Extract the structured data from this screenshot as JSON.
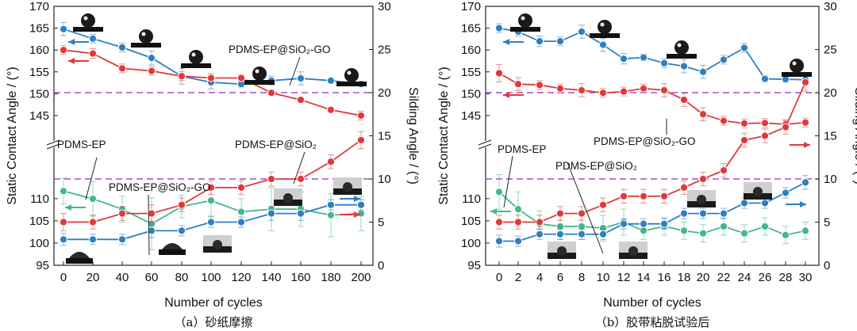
{
  "chart_data": [
    {
      "id": "a",
      "type": "line",
      "caption": "（a）砂纸摩擦",
      "xlabel": "Number of cycles",
      "ylabel_left": "Static Contact Angle / (°)",
      "ylabel_right": "Silding Angle / (°)",
      "x": [
        0,
        20,
        40,
        60,
        80,
        100,
        120,
        140,
        160,
        180,
        200
      ],
      "x_ticks": [
        "0",
        "20",
        "40",
        "60",
        "80",
        "100",
        "120",
        "140",
        "160",
        "180",
        "200"
      ],
      "left_axis": {
        "lower_ticks": [
          "95",
          "100",
          "105",
          "110"
        ],
        "upper_ticks": [
          "145",
          "150",
          "155",
          "160",
          "165",
          "170"
        ],
        "lower_range": [
          95,
          113
        ],
        "upper_range": [
          141,
          170
        ]
      },
      "right_axis": {
        "ticks": [
          "0",
          "5",
          "10",
          "15",
          "20",
          "25",
          "30"
        ],
        "range": [
          0,
          30
        ]
      },
      "reference_lines": [
        {
          "axis": "right",
          "value": 20
        },
        {
          "axis": "right",
          "value": 10
        }
      ],
      "series": [
        {
          "name": "PDMS-EP@SiO2-GO",
          "axis": "left",
          "color": "#2f7fc1",
          "values": [
            164.8,
            162.6,
            160.6,
            158.2,
            154.0,
            152.6,
            152.2,
            153.0,
            153.5,
            153.0,
            152.2
          ],
          "err": [
            1.5,
            1.0,
            1.0,
            1.6,
            1.8,
            1.5,
            0.8,
            1.0,
            1.5,
            0.6,
            0.6
          ]
        },
        {
          "name": "PDMS-EP@SiO2",
          "axis": "left",
          "color": "#e0393d",
          "values": [
            160.0,
            159.2,
            155.8,
            155.2,
            154.0,
            153.6,
            153.6,
            150.2,
            148.6,
            146.3,
            145.0
          ],
          "err": [
            1.0,
            1.1,
            1.0,
            1.0,
            1.0,
            1.0,
            0.8,
            0.6,
            0.6,
            0.6,
            1.0
          ]
        },
        {
          "name": "PDMS-EP",
          "axis": "right",
          "color": "#3fb98b",
          "values": [
            8.6,
            7.7,
            6.5,
            4.8,
            6.8,
            7.5,
            6.2,
            6.5,
            6.5,
            5.8,
            6.0
          ],
          "err": [
            1.5,
            2.0,
            1.5,
            3.0,
            1.3,
            1.8,
            1.5,
            2.5,
            2.0,
            2.5,
            2.0
          ]
        },
        {
          "name": "PDMS-EP",
          "axis": "right",
          "color": "#e0393d",
          "values": [
            5.0,
            5.0,
            6.0,
            6.0,
            7.0,
            9.0,
            9.0,
            10.0,
            10.0,
            12.0,
            14.5
          ],
          "err": [
            1.0,
            0.8,
            0.8,
            1.0,
            0.8,
            0.8,
            0.8,
            0.8,
            0.8,
            0.8,
            1.0
          ]
        },
        {
          "name": "PDMS-EP@SiO2-GO",
          "axis": "right",
          "color": "#2f7fc1",
          "values": [
            3.0,
            3.0,
            3.0,
            4.0,
            4.0,
            5.0,
            5.0,
            6.0,
            6.0,
            7.0,
            7.0
          ],
          "err": [
            0.7,
            0.6,
            0.6,
            0.8,
            0.6,
            0.6,
            0.6,
            0.8,
            0.8,
            0.6,
            0.6
          ]
        }
      ],
      "labels": [
        {
          "text": "PDMS-EP@SiO₂-GO"
        },
        {
          "text": "PDMS-EP@SiO₂"
        },
        {
          "text": "PDMS-EP"
        },
        {
          "text": "PDMS-EP@SiO₂-GO"
        }
      ]
    },
    {
      "id": "b",
      "type": "line",
      "caption": "（b）胶带粘脱试验后",
      "xlabel": "Number of cycles",
      "ylabel_left": "Static Contact Angle / (°)",
      "ylabel_right": "Silding Angle / (°)",
      "x": [
        0,
        2,
        4,
        6,
        8,
        10,
        12,
        14,
        16,
        18,
        20,
        22,
        24,
        26,
        28,
        30
      ],
      "x_ticks": [
        "0",
        "2",
        "4",
        "6",
        "8",
        "10",
        "12",
        "14",
        "16",
        "18",
        "20",
        "22",
        "24",
        "26",
        "28",
        "30"
      ],
      "left_axis": {
        "lower_ticks": [
          "95",
          "100",
          "105",
          "110"
        ],
        "upper_ticks": [
          "145",
          "150",
          "155",
          "160",
          "165",
          "170"
        ],
        "lower_range": [
          95,
          113
        ],
        "upper_range": [
          141,
          170
        ]
      },
      "right_axis": {
        "ticks": [
          "0",
          "5",
          "10",
          "15",
          "20",
          "25",
          "30"
        ],
        "range": [
          0,
          30
        ]
      },
      "reference_lines": [
        {
          "axis": "right",
          "value": 20
        },
        {
          "axis": "right",
          "value": 10
        }
      ],
      "series": [
        {
          "name": "PDMS-EP@SiO2-GO",
          "axis": "left",
          "color": "#2f7fc1",
          "values": [
            165.0,
            164.2,
            162.0,
            162.0,
            164.2,
            161.2,
            158.0,
            158.3,
            157.0,
            156.3,
            155.0,
            157.8,
            160.5,
            153.4,
            153.3,
            153.2
          ],
          "err": [
            1.0,
            1.0,
            1.2,
            1.0,
            1.5,
            1.5,
            1.2,
            0.8,
            1.0,
            1.5,
            1.5,
            1.0,
            1.0,
            0.8,
            0.8,
            0.8
          ]
        },
        {
          "name": "PDMS-EP@SiO2",
          "axis": "left",
          "color": "#e0393d",
          "values": [
            154.7,
            152.2,
            152.0,
            151.2,
            150.8,
            150.2,
            150.5,
            151.2,
            150.8,
            148.6,
            145.3,
            143.8,
            143.2,
            143.3,
            143.0,
            143.4
          ],
          "err": [
            2.0,
            1.5,
            1.0,
            1.0,
            1.5,
            1.0,
            1.0,
            1.0,
            1.5,
            1.5,
            1.5,
            1.0,
            1.0,
            1.0,
            1.0,
            1.0
          ]
        },
        {
          "name": "PDMS-EP",
          "axis": "right",
          "color": "#3fb98b",
          "values": [
            8.5,
            6.5,
            4.8,
            4.5,
            4.5,
            4.3,
            5.0,
            4.0,
            4.5,
            4.0,
            3.7,
            4.5,
            3.7,
            4.5,
            3.5,
            4.0
          ],
          "err": [
            2.0,
            2.0,
            1.5,
            1.5,
            1.5,
            1.5,
            1.5,
            1.0,
            1.0,
            1.0,
            1.0,
            1.0,
            1.0,
            1.0,
            1.0,
            1.0
          ]
        },
        {
          "name": "PDMS-EP",
          "axis": "right",
          "color": "#e0393d",
          "values": [
            5.0,
            5.0,
            5.0,
            6.0,
            6.0,
            7.0,
            8.0,
            8.0,
            8.0,
            9.0,
            10.0,
            11.0,
            14.5,
            15.0,
            16.0,
            21.2
          ],
          "err": [
            0.8,
            0.8,
            0.8,
            0.8,
            0.8,
            0.8,
            0.8,
            0.8,
            0.8,
            0.8,
            0.8,
            0.8,
            0.8,
            0.8,
            0.8,
            1.0
          ]
        },
        {
          "name": "PDMS-EP@SiO2-GO",
          "axis": "right",
          "color": "#2f7fc1",
          "values": [
            2.8,
            2.8,
            3.6,
            3.6,
            3.6,
            3.6,
            4.8,
            4.8,
            4.8,
            6.0,
            6.0,
            6.0,
            7.2,
            7.2,
            8.4,
            9.6
          ],
          "err": [
            0.7,
            0.6,
            0.6,
            0.6,
            0.6,
            0.6,
            0.6,
            0.6,
            0.6,
            0.6,
            0.6,
            0.6,
            0.6,
            0.6,
            0.6,
            0.8
          ]
        }
      ],
      "labels": [
        {
          "text": "PDMS-EP@SiO₂-GO"
        },
        {
          "text": "PDMS-EP@SiO₂"
        },
        {
          "text": "PDMS-EP"
        }
      ]
    }
  ]
}
